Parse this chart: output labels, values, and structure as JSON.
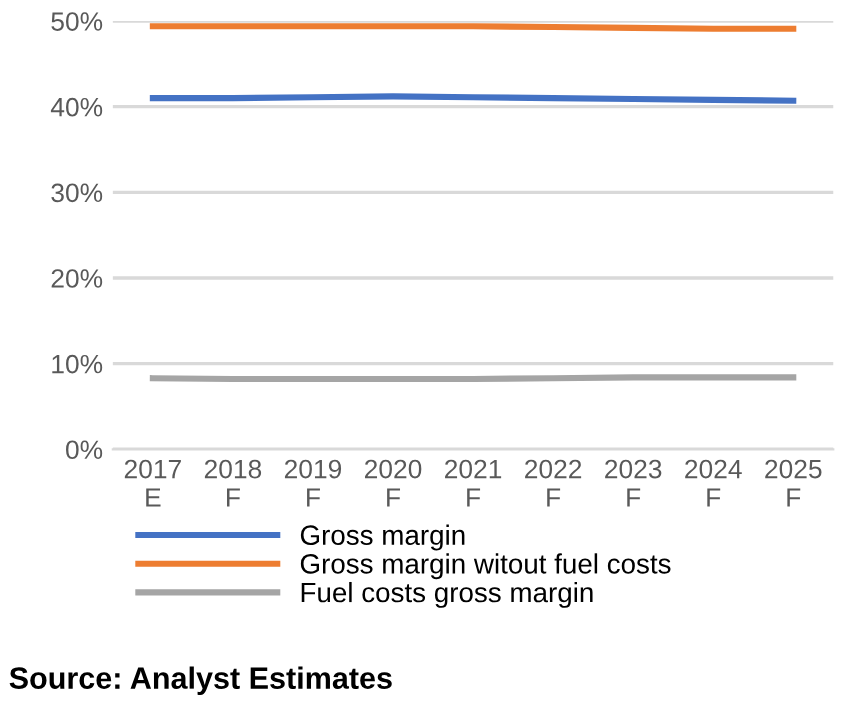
{
  "chart_data": {
    "type": "line",
    "categories": [
      "2017\nE",
      "2018\nF",
      "2019\nF",
      "2020\nF",
      "2021\nF",
      "2022\nF",
      "2023\nF",
      "2024\nF",
      "2025\nF"
    ],
    "series": [
      {
        "name": "Gross margin",
        "color": "#4472c4",
        "values": [
          41.0,
          41.0,
          41.1,
          41.2,
          41.1,
          41.0,
          40.9,
          40.8,
          40.7
        ]
      },
      {
        "name": "Gross margin witout fuel costs",
        "color": "#ed7d31",
        "values": [
          49.4,
          49.4,
          49.4,
          49.4,
          49.4,
          49.3,
          49.2,
          49.1,
          49.1
        ]
      },
      {
        "name": "Fuel costs gross margin",
        "color": "#a5a5a5",
        "values": [
          8.3,
          8.2,
          8.2,
          8.2,
          8.2,
          8.3,
          8.4,
          8.4,
          8.4
        ]
      }
    ],
    "ylim": [
      0,
      50
    ],
    "yticks": [
      {
        "value": 0,
        "label": "0%"
      },
      {
        "value": 10,
        "label": "10%"
      },
      {
        "value": 20,
        "label": "20%"
      },
      {
        "value": 30,
        "label": "30%"
      },
      {
        "value": 40,
        "label": "40%"
      },
      {
        "value": 50,
        "label": "50%"
      }
    ],
    "grid": "y",
    "legend": "bottom",
    "marker": "none",
    "line_style": "solid",
    "annotations": [
      "Source: Analyst Estimates"
    ]
  }
}
